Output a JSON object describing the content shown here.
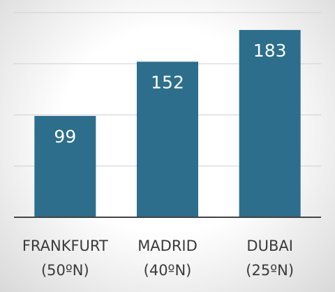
{
  "chart_data": {
    "type": "bar",
    "categories": [
      [
        "FRANKFURT",
        "(50ºN)"
      ],
      [
        "MADRID",
        "(40ºN)"
      ],
      [
        "DUBAI",
        "(25ºN)"
      ]
    ],
    "values": [
      99,
      152,
      183
    ],
    "color": "#2c6e8c",
    "ylim": [
      0,
      200
    ],
    "yticks": [
      0,
      50,
      100,
      150,
      200
    ],
    "grid": true
  }
}
